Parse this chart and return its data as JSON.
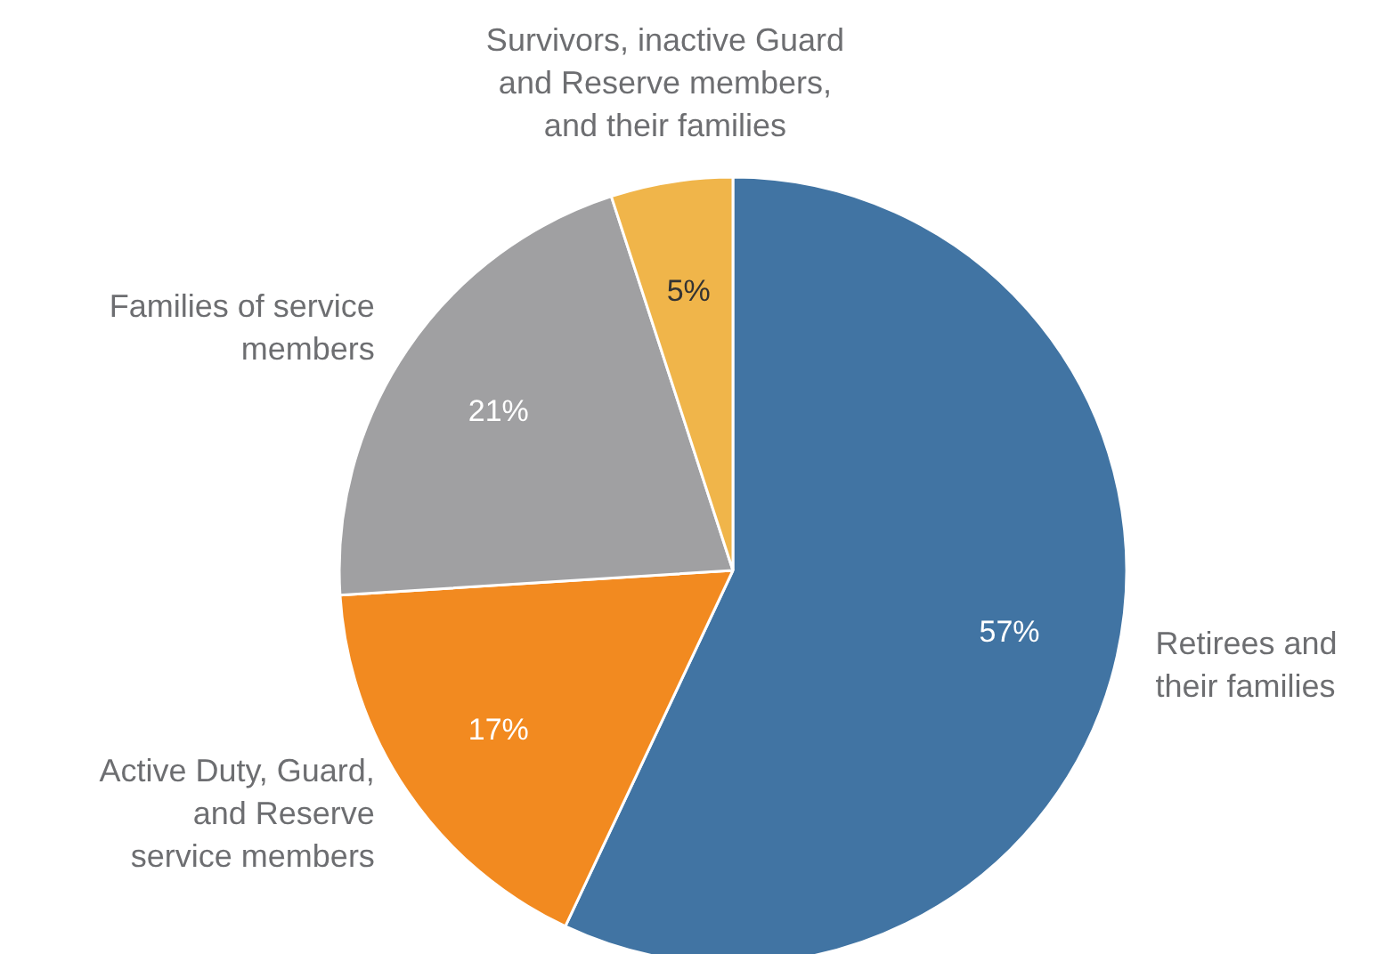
{
  "chart_data": {
    "type": "pie",
    "categories": [
      "Retirees and\ntheir families",
      "Active Duty, Guard,\nand Reserve\nservice members",
      "Families of service\nmembers",
      "Survivors, inactive Guard\nand Reserve members,\nand their families"
    ],
    "values": [
      57,
      17,
      21,
      5
    ],
    "colors": [
      "#4174a3",
      "#f28a20",
      "#a0a0a2",
      "#f0b54a"
    ],
    "value_labels": [
      "57%",
      "17%",
      "21%",
      "5%"
    ]
  }
}
